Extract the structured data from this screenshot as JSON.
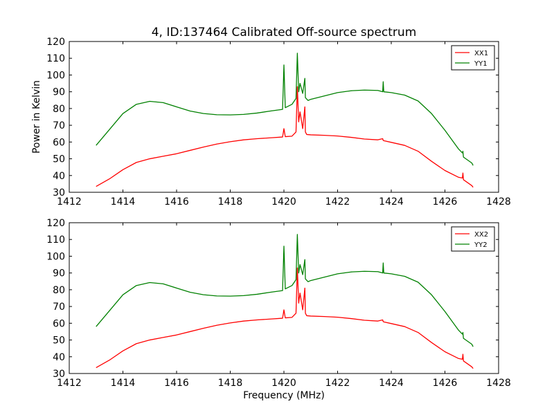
{
  "figure": {
    "title": "4, ID:137464 Calibrated Off-source spectrum"
  },
  "chart_data": [
    {
      "type": "line",
      "title": "4, ID:137464 Calibrated Off-source spectrum",
      "xlabel": "",
      "ylabel": "Power in Kelvin",
      "xlim": [
        1412,
        1428
      ],
      "ylim": [
        30,
        120
      ],
      "xticks": [
        "1412",
        "1414",
        "1416",
        "1418",
        "1420",
        "1422",
        "1424",
        "1426",
        "1428"
      ],
      "yticks": [
        "30",
        "40",
        "50",
        "60",
        "70",
        "80",
        "90",
        "100",
        "110",
        "120"
      ],
      "grid": false,
      "legend_position": "top-right",
      "series": [
        {
          "name": "XX1",
          "color": "#ff0000",
          "x": [
            1413.0,
            1413.5,
            1414.0,
            1414.5,
            1415.0,
            1415.5,
            1416.0,
            1416.5,
            1417.0,
            1417.5,
            1418.0,
            1418.5,
            1419.0,
            1419.5,
            1419.95,
            1420.0,
            1420.05,
            1420.3,
            1420.45,
            1420.5,
            1420.55,
            1420.6,
            1420.7,
            1420.78,
            1420.8,
            1420.85,
            1421.0,
            1421.5,
            1422.0,
            1422.5,
            1423.0,
            1423.5,
            1423.68,
            1423.7,
            1423.72,
            1424.0,
            1424.5,
            1425.0,
            1425.5,
            1426.0,
            1426.5,
            1426.65,
            1426.67,
            1426.69,
            1427.0,
            1427.05
          ],
          "y": [
            33.5,
            38.0,
            43.5,
            47.8,
            50.0,
            51.5,
            53.0,
            55.0,
            57.0,
            58.8,
            60.2,
            61.3,
            62.0,
            62.5,
            63.0,
            68.0,
            63.2,
            63.5,
            66.0,
            93.0,
            72.0,
            78.0,
            68.0,
            81.0,
            66.0,
            64.5,
            64.3,
            64.0,
            63.6,
            62.8,
            61.8,
            61.3,
            62.0,
            61.0,
            60.8,
            59.8,
            58.0,
            54.5,
            48.5,
            43.0,
            39.0,
            38.5,
            41.5,
            37.5,
            34.0,
            33.0
          ]
        },
        {
          "name": "YY1",
          "color": "#008000",
          "x": [
            1413.0,
            1413.5,
            1414.0,
            1414.5,
            1415.0,
            1415.5,
            1416.0,
            1416.5,
            1417.0,
            1417.5,
            1418.0,
            1418.5,
            1419.0,
            1419.5,
            1419.95,
            1420.0,
            1420.05,
            1420.3,
            1420.45,
            1420.5,
            1420.55,
            1420.6,
            1420.7,
            1420.78,
            1420.8,
            1420.9,
            1421.0,
            1421.5,
            1422.0,
            1422.5,
            1423.0,
            1423.5,
            1423.68,
            1423.7,
            1423.72,
            1424.0,
            1424.5,
            1425.0,
            1425.5,
            1426.0,
            1426.5,
            1426.65,
            1426.67,
            1426.69,
            1427.0,
            1427.05
          ],
          "y": [
            58.0,
            67.5,
            77.0,
            82.5,
            84.3,
            83.5,
            81.0,
            78.5,
            77.0,
            76.3,
            76.2,
            76.5,
            77.3,
            78.5,
            79.5,
            106.0,
            80.5,
            82.5,
            86.0,
            113.0,
            90.0,
            95.0,
            89.0,
            98.0,
            86.5,
            84.8,
            85.5,
            87.5,
            89.5,
            90.6,
            91.0,
            90.8,
            90.0,
            96.0,
            90.0,
            89.5,
            88.0,
            84.5,
            77.0,
            67.0,
            56.0,
            53.5,
            54.5,
            51.0,
            47.5,
            46.0
          ]
        }
      ]
    },
    {
      "type": "line",
      "title": "",
      "xlabel": "Frequency (MHz)",
      "ylabel": "",
      "xlim": [
        1412,
        1428
      ],
      "ylim": [
        30,
        120
      ],
      "xticks": [
        "1412",
        "1414",
        "1416",
        "1418",
        "1420",
        "1422",
        "1424",
        "1426",
        "1428"
      ],
      "yticks": [
        "30",
        "40",
        "50",
        "60",
        "70",
        "80",
        "90",
        "100",
        "110",
        "120"
      ],
      "grid": false,
      "legend_position": "top-right",
      "series": [
        {
          "name": "XX2",
          "color": "#ff0000",
          "x": [
            1413.0,
            1413.5,
            1414.0,
            1414.5,
            1415.0,
            1415.5,
            1416.0,
            1416.5,
            1417.0,
            1417.5,
            1418.0,
            1418.5,
            1419.0,
            1419.5,
            1419.95,
            1420.0,
            1420.05,
            1420.3,
            1420.45,
            1420.5,
            1420.55,
            1420.6,
            1420.7,
            1420.78,
            1420.8,
            1420.85,
            1421.0,
            1421.5,
            1422.0,
            1422.5,
            1423.0,
            1423.5,
            1423.68,
            1423.7,
            1423.72,
            1424.0,
            1424.5,
            1425.0,
            1425.5,
            1426.0,
            1426.5,
            1426.65,
            1426.67,
            1426.69,
            1427.0,
            1427.05
          ],
          "y": [
            33.5,
            38.0,
            43.5,
            47.8,
            50.0,
            51.5,
            53.0,
            55.0,
            57.0,
            58.8,
            60.2,
            61.3,
            62.0,
            62.5,
            63.0,
            68.0,
            63.2,
            63.5,
            66.0,
            93.0,
            72.0,
            78.0,
            68.0,
            81.0,
            66.0,
            64.5,
            64.3,
            64.0,
            63.6,
            62.8,
            61.8,
            61.3,
            62.0,
            61.0,
            60.8,
            59.8,
            58.0,
            54.5,
            48.5,
            43.0,
            39.0,
            38.5,
            41.5,
            37.5,
            34.0,
            33.0
          ]
        },
        {
          "name": "YY2",
          "color": "#008000",
          "x": [
            1413.0,
            1413.5,
            1414.0,
            1414.5,
            1415.0,
            1415.5,
            1416.0,
            1416.5,
            1417.0,
            1417.5,
            1418.0,
            1418.5,
            1419.0,
            1419.5,
            1419.95,
            1420.0,
            1420.05,
            1420.3,
            1420.45,
            1420.5,
            1420.55,
            1420.6,
            1420.7,
            1420.78,
            1420.8,
            1420.9,
            1421.0,
            1421.5,
            1422.0,
            1422.5,
            1423.0,
            1423.5,
            1423.68,
            1423.7,
            1423.72,
            1424.0,
            1424.5,
            1425.0,
            1425.5,
            1426.0,
            1426.5,
            1426.65,
            1426.67,
            1426.69,
            1427.0,
            1427.05
          ],
          "y": [
            58.0,
            67.5,
            77.0,
            82.5,
            84.3,
            83.5,
            81.0,
            78.5,
            77.0,
            76.3,
            76.2,
            76.5,
            77.3,
            78.5,
            79.5,
            106.0,
            80.5,
            82.5,
            86.0,
            113.0,
            90.0,
            95.0,
            89.0,
            98.0,
            86.5,
            84.8,
            85.5,
            87.5,
            89.5,
            90.6,
            91.0,
            90.8,
            90.0,
            96.0,
            90.0,
            89.5,
            88.0,
            84.5,
            77.0,
            67.0,
            56.0,
            53.5,
            54.5,
            51.0,
            47.5,
            46.0
          ]
        }
      ]
    }
  ]
}
